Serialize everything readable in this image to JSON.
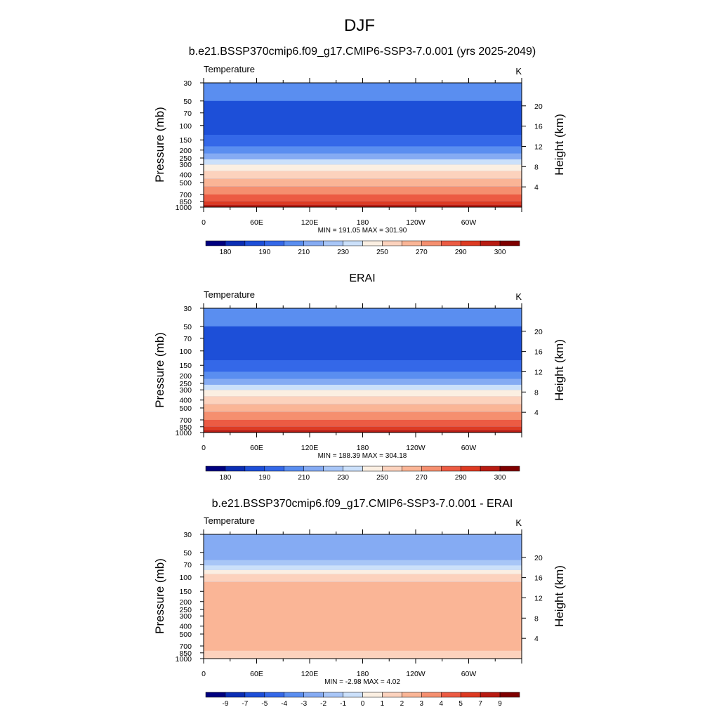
{
  "figure": {
    "title": "DJF"
  },
  "scales": {
    "abs": {
      "colors": [
        "#00007f",
        "#0b2eb4",
        "#1d4fd8",
        "#3468e8",
        "#5a8ef0",
        "#85abf3",
        "#a8c6f7",
        "#cbe0fa",
        "#fbefe2",
        "#fcd2bd",
        "#fab596",
        "#f58f6f",
        "#ec5b43",
        "#dd3a22",
        "#b81b12",
        "#7f0000"
      ],
      "labels": [
        "180",
        "190",
        "210",
        "230",
        "250",
        "270",
        "290",
        "300"
      ]
    },
    "diff": {
      "colors": [
        "#00007f",
        "#0b2eb4",
        "#1d4fd8",
        "#3468e8",
        "#5a8ef0",
        "#85abf3",
        "#a8c6f7",
        "#cbe0fa",
        "#fbefe2",
        "#fcd2bd",
        "#fab596",
        "#f58f6f",
        "#ec5b43",
        "#dd3a22",
        "#b81b12",
        "#7f0000"
      ],
      "labels": [
        "-9",
        "-7",
        "-5",
        "-4",
        "-3",
        "-2",
        "-1",
        "0",
        "1",
        "2",
        "3",
        "4",
        "5",
        "7",
        "9"
      ]
    }
  },
  "axes": {
    "pressure_ticks": [
      "30",
      "50",
      "70",
      "100",
      "150",
      "200",
      "250",
      "300",
      "400",
      "500",
      "700",
      "850",
      "1000"
    ],
    "pressure_values": [
      30,
      50,
      70,
      100,
      150,
      200,
      250,
      300,
      400,
      500,
      700,
      850,
      1000
    ],
    "height_ticks": [
      "4",
      "8",
      "12",
      "16",
      "20"
    ],
    "height_values": [
      4,
      8,
      12,
      16,
      20
    ],
    "lon_ticks": [
      "0",
      "60E",
      "120E",
      "180",
      "120W",
      "60W"
    ],
    "lon_values": [
      0,
      60,
      120,
      180,
      240,
      300
    ],
    "ylabel_left": "Pressure (mb)",
    "ylabel_right": "Height (km)"
  },
  "chart_data": [
    {
      "type": "heatmap",
      "title": "b.e21.BSSP370cmip6.f09_g17.CMIP6-SSP3-7.0.001 (yrs 2025-2049)",
      "variable": "Temperature",
      "units": "K",
      "stats": "MIN = 191.05  MAX = 301.90",
      "min": 191.05,
      "max": 301.9,
      "scale": "abs",
      "xlim": [
        0,
        360
      ],
      "ylim": [
        1000,
        30
      ],
      "bands": [
        {
          "p": [
            30,
            50
          ],
          "level": 4
        },
        {
          "p": [
            50,
            130
          ],
          "level": 2
        },
        {
          "p": [
            130,
            180
          ],
          "level": 3
        },
        {
          "p": [
            180,
            220
          ],
          "level": 4
        },
        {
          "p": [
            220,
            260
          ],
          "level": 5
        },
        {
          "p": [
            260,
            300
          ],
          "level": 7
        },
        {
          "p": [
            300,
            360
          ],
          "level": 8
        },
        {
          "p": [
            360,
            450
          ],
          "level": 9
        },
        {
          "p": [
            450,
            560
          ],
          "level": 10
        },
        {
          "p": [
            560,
            700
          ],
          "level": 11
        },
        {
          "p": [
            700,
            850
          ],
          "level": 12
        },
        {
          "p": [
            850,
            940
          ],
          "level": 13
        },
        {
          "p": [
            940,
            1000
          ],
          "level": 14
        }
      ]
    },
    {
      "type": "heatmap",
      "title": "ERAI",
      "variable": "Temperature",
      "units": "K",
      "stats": "MIN = 188.39  MAX = 304.18",
      "min": 188.39,
      "max": 304.18,
      "scale": "abs",
      "xlim": [
        0,
        360
      ],
      "ylim": [
        1000,
        30
      ],
      "bands": [
        {
          "p": [
            30,
            50
          ],
          "level": 4
        },
        {
          "p": [
            50,
            130
          ],
          "level": 2
        },
        {
          "p": [
            130,
            180
          ],
          "level": 3
        },
        {
          "p": [
            180,
            220
          ],
          "level": 4
        },
        {
          "p": [
            220,
            260
          ],
          "level": 5
        },
        {
          "p": [
            260,
            300
          ],
          "level": 7
        },
        {
          "p": [
            300,
            360
          ],
          "level": 8
        },
        {
          "p": [
            360,
            450
          ],
          "level": 9
        },
        {
          "p": [
            450,
            560
          ],
          "level": 10
        },
        {
          "p": [
            560,
            700
          ],
          "level": 11
        },
        {
          "p": [
            700,
            850
          ],
          "level": 12
        },
        {
          "p": [
            850,
            940
          ],
          "level": 13
        },
        {
          "p": [
            940,
            1000
          ],
          "level": 14
        }
      ]
    },
    {
      "type": "heatmap",
      "title": "b.e21.BSSP370cmip6.f09_g17.CMIP6-SSP3-7.0.001 - ERAI",
      "variable": "Temperature",
      "units": "K",
      "stats": "MIN =  -2.98  MAX =   4.02",
      "min": -2.98,
      "max": 4.02,
      "scale": "diff",
      "xlim": [
        0,
        360
      ],
      "ylim": [
        1000,
        30
      ],
      "bands": [
        {
          "p": [
            30,
            62
          ],
          "level": 5
        },
        {
          "p": [
            62,
            72
          ],
          "level": 6
        },
        {
          "p": [
            72,
            82
          ],
          "level": 7
        },
        {
          "p": [
            82,
            92
          ],
          "level": 8
        },
        {
          "p": [
            92,
            115
          ],
          "level": 9
        },
        {
          "p": [
            115,
            1000
          ],
          "level": 10
        },
        {
          "p": [
            800,
            1000
          ],
          "level": 9
        }
      ]
    }
  ]
}
